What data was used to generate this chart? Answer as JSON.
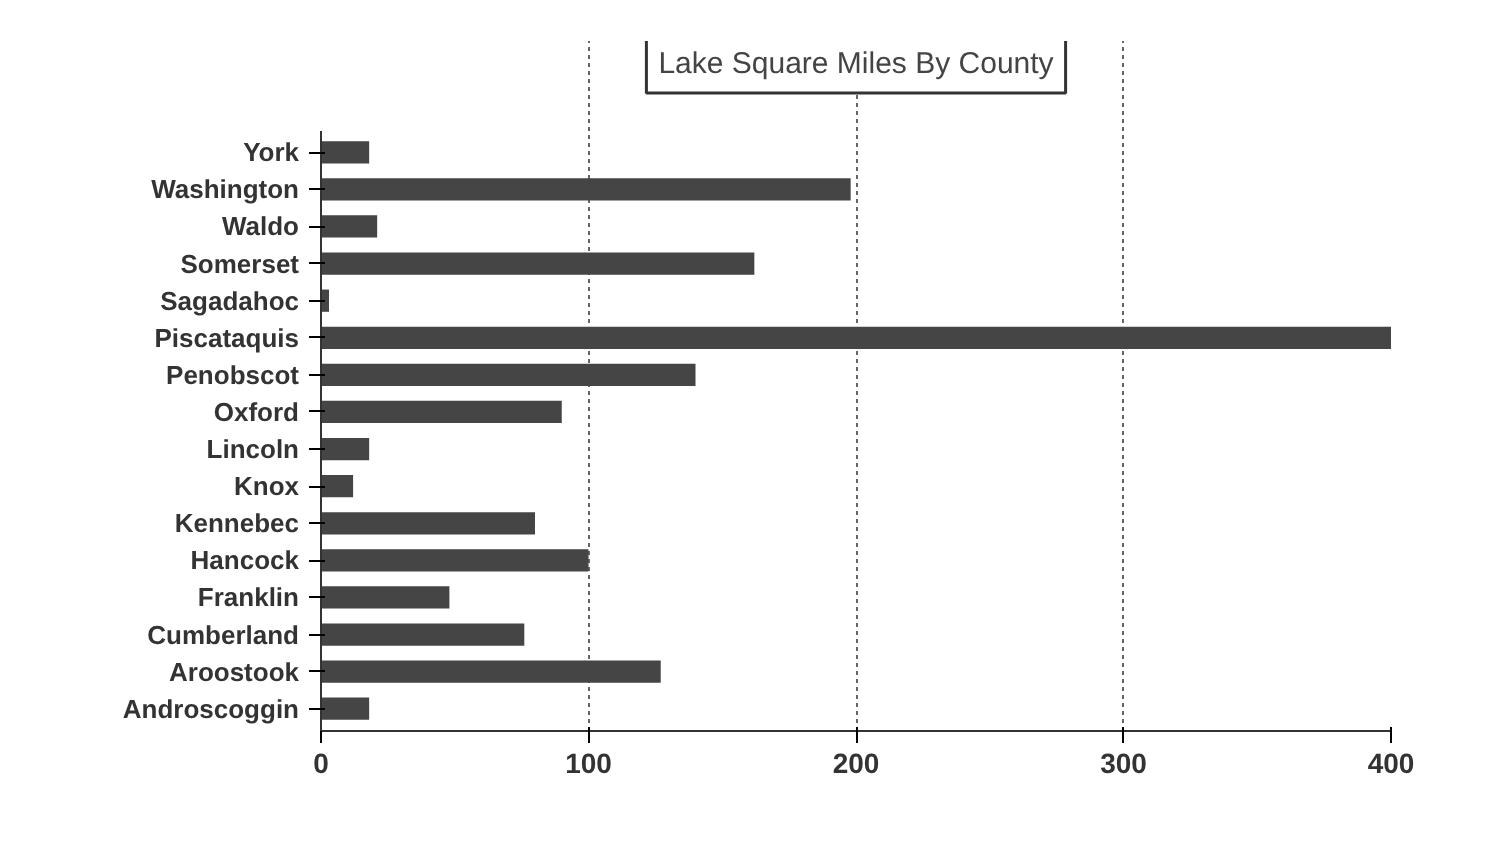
{
  "chart_data": {
    "type": "bar",
    "orientation": "horizontal",
    "title": "Lake Square Miles By County",
    "categories": [
      "York",
      "Washington",
      "Waldo",
      "Somerset",
      "Sagadahoc",
      "Piscataquis",
      "Penobscot",
      "Oxford",
      "Lincoln",
      "Knox",
      "Kennebec",
      "Hancock",
      "Franklin",
      "Cumberland",
      "Aroostook",
      "Androscoggin"
    ],
    "values": [
      18,
      198,
      21,
      162,
      3,
      400,
      140,
      90,
      18,
      12,
      80,
      100,
      48,
      76,
      127,
      18
    ],
    "color": "#454545",
    "xlim": [
      0,
      400
    ],
    "xticks": [
      0,
      100,
      200,
      300,
      400
    ],
    "grid": "x"
  }
}
